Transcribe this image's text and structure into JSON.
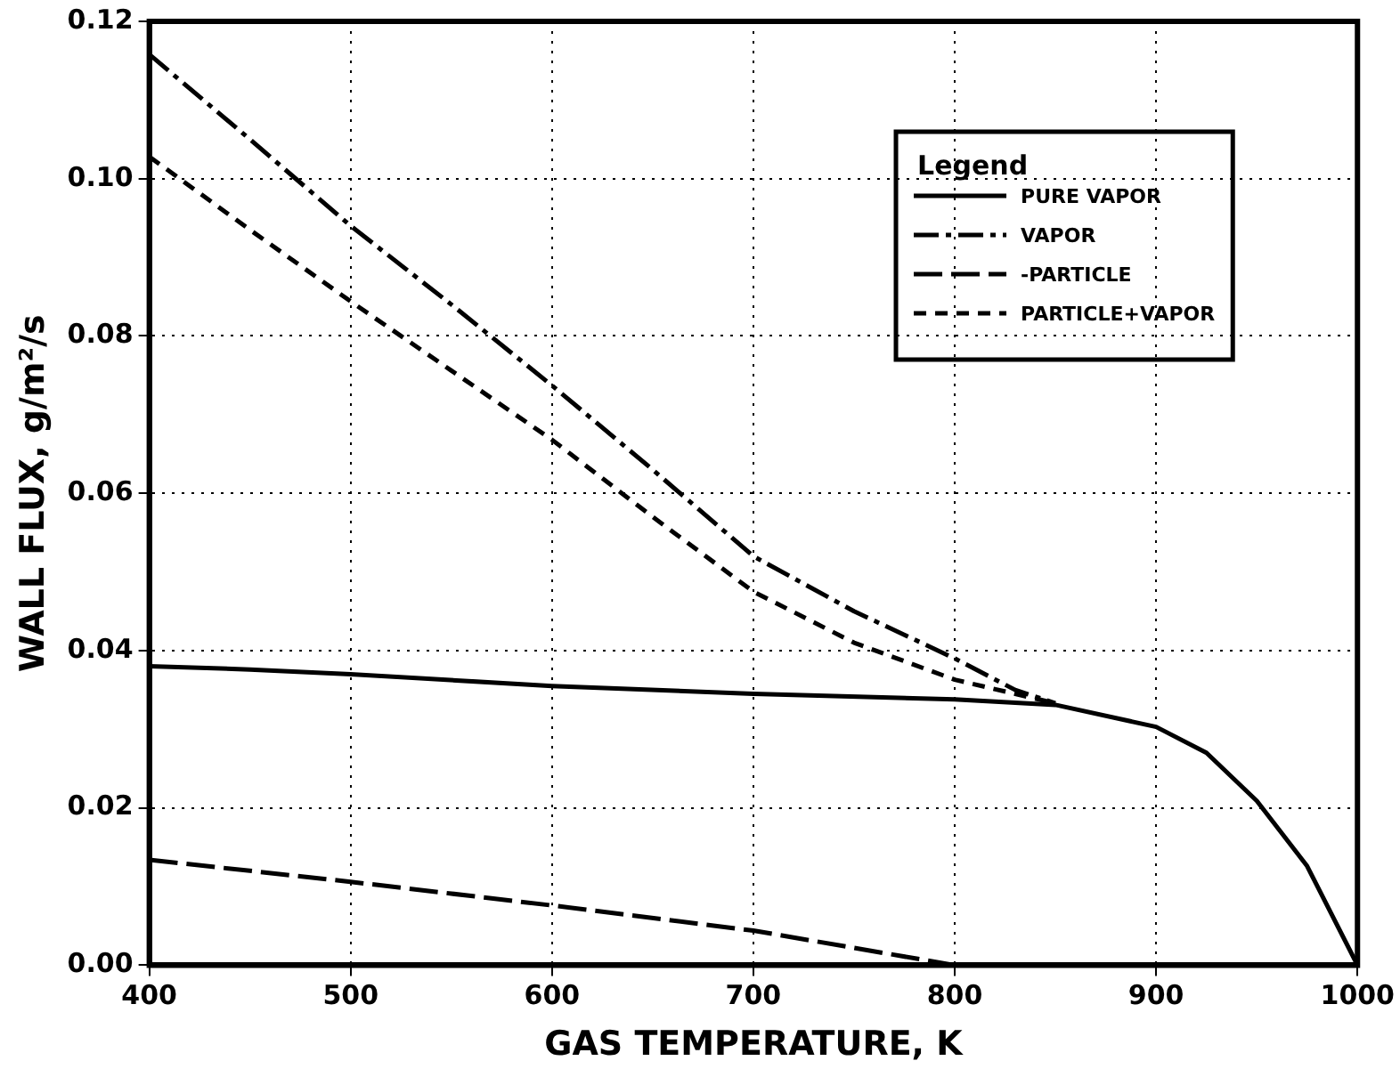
{
  "chart_data": {
    "type": "line",
    "xlabel": "GAS TEMPERATURE, K",
    "ylabel": "WALL FLUX, g/m²/s",
    "legend_title": "Legend",
    "legend": "top right",
    "grid": true,
    "marker": "none",
    "xlim": [
      400,
      1000
    ],
    "xticks": [
      400,
      500,
      600,
      700,
      800,
      900,
      1000
    ],
    "ylim": [
      0,
      0.12
    ],
    "yticks": [
      {
        "value": 0,
        "label": "0.00"
      },
      {
        "value": 0.02,
        "label": "0.02"
      },
      {
        "value": 0.04,
        "label": "0.04"
      },
      {
        "value": 0.06,
        "label": "0.06"
      },
      {
        "value": 0.08,
        "label": "0.08"
      },
      {
        "value": 0.1,
        "label": "0.10"
      },
      {
        "value": 0.12,
        "label": "0.12"
      }
    ],
    "series": [
      {
        "name": "PURE VAPOR",
        "color": "#000000",
        "line_style": "solid",
        "x": [
          400,
          450,
          500,
          600,
          700,
          800,
          850,
          900,
          925,
          950,
          975,
          1000
        ],
        "values": [
          0.038,
          0.0376,
          0.037,
          0.0355,
          0.0345,
          0.0338,
          0.0331,
          0.0303,
          0.027,
          0.0209,
          0.0126,
          0.0
        ]
      },
      {
        "name": "VAPOR",
        "color": "#000000",
        "line_style": "dashdot",
        "x": [
          400,
          450,
          500,
          550,
          600,
          650,
          700,
          750,
          800,
          830,
          850
        ],
        "values": [
          0.1158,
          0.105,
          0.094,
          0.084,
          0.0737,
          0.063,
          0.052,
          0.045,
          0.039,
          0.035,
          0.0333
        ]
      },
      {
        "name": "-PARTICLE",
        "color": "#000000",
        "line_style": "longdash",
        "x": [
          400,
          500,
          600,
          700,
          800
        ],
        "values": [
          0.0134,
          0.0106,
          0.0076,
          0.0044,
          0.0
        ]
      },
      {
        "name": "PARTICLE+VAPOR",
        "color": "#000000",
        "line_style": "dashed",
        "x": [
          400,
          450,
          500,
          550,
          600,
          650,
          700,
          750,
          800,
          830,
          850
        ],
        "values": [
          0.1028,
          0.0935,
          0.0844,
          0.0756,
          0.0668,
          0.057,
          0.0475,
          0.041,
          0.0363,
          0.0345,
          0.0333
        ]
      }
    ]
  }
}
